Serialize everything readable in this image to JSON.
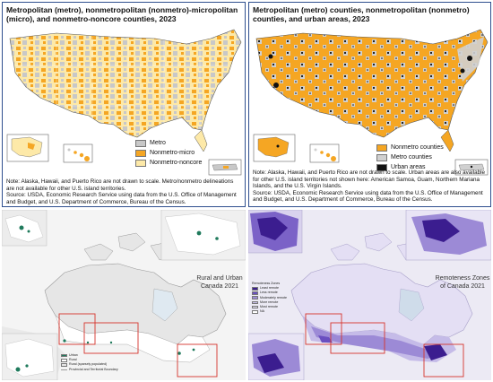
{
  "panels": {
    "metro_micro": {
      "title": "Metropolitan (metro), nonmetropolitan (nonmetro)-micropolitan (micro), and nonmetro-noncore counties, 2023",
      "legend": [
        {
          "label": "Metro",
          "color": "#c8c8c8"
        },
        {
          "label": "Nonmetro-micro",
          "color": "#f5a623"
        },
        {
          "label": "Nonmetro-noncore",
          "color": "#fde9a8"
        }
      ],
      "note_1": "Note: Alaska, Hawaii, and Puerto Rico are not drawn to scale. Metro/nonmetro delineations are not available for other U.S. island territories.",
      "note_2": "Source: USDA, Economic Research Service using data from the U.S. Office of Management and Budget, and U.S. Department of Commerce, Bureau of the Census."
    },
    "urban_areas": {
      "title": "Metropolitan (metro) counties, nonmetropolitan (nonmetro) counties, and urban areas, 2023",
      "legend": [
        {
          "label": "Nonmetro counties",
          "color": "#f5a623"
        },
        {
          "label": "Metro counties",
          "color": "#d0d0d0"
        },
        {
          "label": "Urban areas",
          "color": "#111111"
        }
      ],
      "note_1": "Note: Alaska, Hawaii, and Puerto Rico are not drawn to scale. Urban areas are also available for other U.S. island territories not shown here: American Samoa, Guam, Northern Mariana Islands, and the U.S. Virgin Islands.",
      "note_2": "Source: USDA, Economic Research Service using data from the U.S. Office of Management and Budget, and U.S. Department of Commerce, Bureau of the Census."
    },
    "rural_canada": {
      "title_line1": "Rural and Urban",
      "title_line2": "Canada 2021",
      "legend": [
        {
          "label": "Urban",
          "color": "#1f7a5c"
        },
        {
          "label": "Rural",
          "color": "#ffffff"
        },
        {
          "label": "Rural (sparsely populated)",
          "color": "#e6e6e6"
        },
        {
          "label": "Provincial and Territorial Boundary",
          "color": "#9a9a9a"
        }
      ]
    },
    "remote_canada": {
      "title_line1": "Remoteness Zones",
      "title_line2": "of Canada 2021",
      "legend_heading": "Remoteness Zones",
      "legend": [
        {
          "label": "Least remote",
          "color": "#3b1d8f"
        },
        {
          "label": "Less remote",
          "color": "#6a4fc0"
        },
        {
          "label": "Moderately remote",
          "color": "#9c8ad6"
        },
        {
          "label": "More remote",
          "color": "#c5bbe8"
        },
        {
          "label": "Most remote",
          "color": "#e4dff4"
        },
        {
          "label": "NA",
          "color": "#ffffff"
        }
      ]
    }
  },
  "colors": {
    "panel_border": "#2f4f8f",
    "water": "#bcd3e6",
    "inset_box": "#d6342c",
    "usa_orange": "#f5a623",
    "usa_pale": "#fde9a8",
    "usa_grey": "#c8c8c8"
  }
}
